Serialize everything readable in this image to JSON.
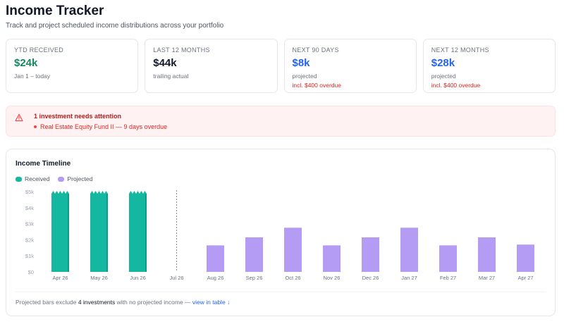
{
  "page": {
    "title": "Income Tracker",
    "subtitle": "Track and project scheduled income distributions across your portfolio"
  },
  "cards": [
    {
      "label": "YTD RECEIVED",
      "value": "$24k",
      "sub": "Jan 1 – today",
      "warn": "",
      "color": "#16875e"
    },
    {
      "label": "LAST 12 MONTHS",
      "value": "$44k",
      "sub": "trailing actual",
      "warn": "",
      "color": "#111827"
    },
    {
      "label": "NEXT 90 DAYS",
      "value": "$8k",
      "sub": "projected",
      "warn": "incl. $400 overdue",
      "color": "#2563eb"
    },
    {
      "label": "NEXT 12 MONTHS",
      "value": "$28k",
      "sub": "projected",
      "warn": "incl. $400 overdue",
      "color": "#2563eb"
    }
  ],
  "alert": {
    "title": "1 investment needs attention",
    "item": "Real Estate Equity Fund II — 9 days overdue",
    "icon": "warning-triangle-icon"
  },
  "timeline": {
    "title": "Income Timeline",
    "legend_received": "Received",
    "legend_projected": "Projected",
    "footer_prefix": "Projected bars exclude ",
    "footer_count": "4 investments",
    "footer_middle": " with no projected income — ",
    "footer_link": "view in table ↓"
  },
  "colors": {
    "received": "#14b8a0",
    "projected": "#b49cf5",
    "alert_red": "#dc2626"
  },
  "chart_data": {
    "type": "bar",
    "categories": [
      "Apr 26",
      "May 26",
      "Jun 26",
      "Jul 26",
      "Aug 26",
      "Sep 26",
      "Oct 26",
      "Nov 26",
      "Dec 26",
      "Jan 27",
      "Feb 27",
      "Mar 27",
      "Apr 27"
    ],
    "series": [
      {
        "name": "Received",
        "values": [
          5000,
          5000,
          5000,
          null,
          null,
          null,
          null,
          null,
          null,
          null,
          null,
          null,
          null
        ]
      },
      {
        "name": "Projected",
        "values": [
          null,
          null,
          null,
          null,
          1650,
          2150,
          2750,
          1650,
          2150,
          2750,
          1650,
          2150,
          1700
        ]
      }
    ],
    "received_clipped": true,
    "today_marker": "Jul 26",
    "yticks": [
      "$0",
      "$1k",
      "$2k",
      "$3k",
      "$4k",
      "$5k"
    ],
    "ylim": [
      0,
      5000
    ],
    "grid": false,
    "legend": "top-left"
  }
}
